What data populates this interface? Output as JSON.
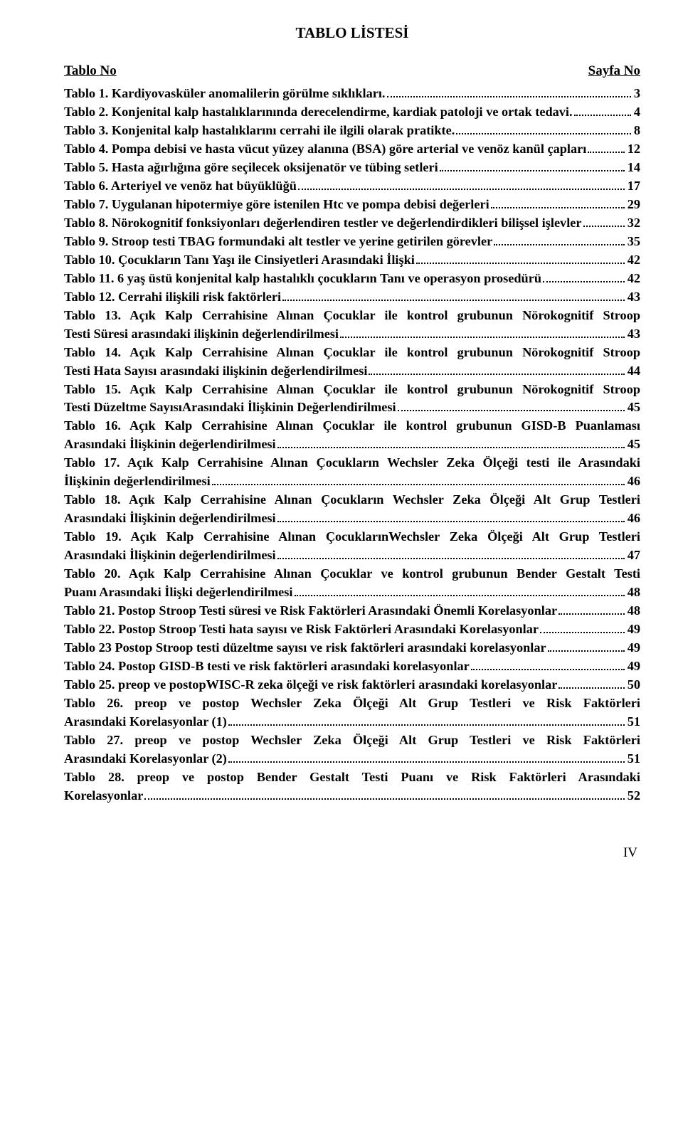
{
  "title": "TABLO LİSTESİ",
  "header_left": "Tablo No",
  "header_right": "Sayfa No",
  "footer": "IV",
  "entries": [
    {
      "label": "Tablo 1. Kardiyovasküler anomalilerin görülme sıklıkları.",
      "page": "3"
    },
    {
      "label": "Tablo 2. Konjenital kalp hastalıklarınında derecelendirme, kardiak patoloji ve ortak tedavi.",
      "page": "4"
    },
    {
      "label": "Tablo 3. Konjenital kalp hastalıklarını cerrahi ile ilgili olarak pratikte.",
      "page": "8"
    },
    {
      "label": "Tablo 4. Pompa debisi ve hasta vücut yüzey alanına (BSA) göre arterial ve venöz kanül çapları",
      "page": "12"
    },
    {
      "label": "Tablo 5. Hasta ağırlığına göre seçilecek oksijenatör ve tübing setleri",
      "page": "14"
    },
    {
      "label": "Tablo 6. Arteriyel ve venöz hat büyüklüğü",
      "page": "17"
    },
    {
      "label": "Tablo 7. Uygulanan hipotermiye göre istenilen Htc ve pompa debisi değerleri",
      "page": "29"
    },
    {
      "label": "Tablo 8. Nörokognitif fonksiyonları değerlendiren testler ve değerlendirdikleri bilişsel işlevler",
      "page": "32"
    },
    {
      "label": "Tablo 9. Stroop testi TBAG formundaki alt testler ve yerine getirilen görevler",
      "page": "35"
    },
    {
      "label": "Tablo 10. Çocukların Tanı Yaşı ile Cinsiyetleri Arasındaki İlişki",
      "page": "42"
    },
    {
      "label": "Tablo 11. 6 yaş üstü konjenital kalp hastalıklı çocukların Tanı ve operasyon prosedürü",
      "page": "42"
    },
    {
      "label": "Tablo 12. Cerrahi ilişkili risk faktörleri",
      "page": "43"
    },
    {
      "label1": "Tablo 13. Açık Kalp Cerrahisine Alınan Çocuklar ile kontrol grubunun Nörokognitif Stroop",
      "label2": "Testi Süresi arasındaki ilişkinin değerlendirilmesi",
      "page": "43"
    },
    {
      "label1": "Tablo 14. Açık Kalp Cerrahisine Alınan Çocuklar ile kontrol grubunun Nörokognitif Stroop",
      "label2": "Testi Hata Sayısı arasındaki ilişkinin değerlendirilmesi",
      "page": "44"
    },
    {
      "label1": "Tablo 15. Açık Kalp Cerrahisine Alınan Çocuklar ile kontrol grubunun Nörokognitif Stroop",
      "label2": "Testi Düzeltme SayısıArasındaki İlişkinin Değerlendirilmesi",
      "page": "45"
    },
    {
      "label1": "Tablo 16. Açık Kalp Cerrahisine Alınan Çocuklar ile kontrol grubunun GISD-B Puanlaması",
      "label2": "Arasındaki İlişkinin değerlendirilmesi",
      "page": "45"
    },
    {
      "label1": "Tablo 17. Açık Kalp Cerrahisine Alınan Çocukların Wechsler Zeka Ölçeği testi ile Arasındaki",
      "label2": "İlişkinin değerlendirilmesi",
      "page": "46"
    },
    {
      "label1": "Tablo 18. Açık Kalp Cerrahisine Alınan Çocukların Wechsler Zeka Ölçeği Alt Grup Testleri",
      "label2": "Arasındaki İlişkinin değerlendirilmesi",
      "page": "46"
    },
    {
      "label1": "Tablo 19. Açık Kalp Cerrahisine Alınan ÇocuklarınWechsler Zeka Ölçeği Alt Grup Testleri",
      "label2": "Arasındaki İlişkinin değerlendirilmesi",
      "page": "47"
    },
    {
      "label1": "Tablo 20. Açık Kalp Cerrahisine Alınan Çocuklar ve kontrol grubunun Bender Gestalt Testi",
      "label2": "Puanı Arasındaki İlişki değerlendirilmesi",
      "page": "48"
    },
    {
      "label": "Tablo 21. Postop Stroop Testi süresi ve Risk Faktörleri Arasındaki Önemli Korelasyonlar",
      "page": "48"
    },
    {
      "label": "Tablo 22. Postop Stroop Testi hata sayısı ve Risk Faktörleri Arasındaki Korelasyonlar",
      "page": "49"
    },
    {
      "label": "Tablo 23 Postop Stroop testi düzeltme sayısı ve risk faktörleri arasındaki korelasyonlar",
      "page": "49"
    },
    {
      "label": "Tablo 24. Postop GISD-B testi ve risk faktörleri arasındaki korelasyonlar",
      "page": "49"
    },
    {
      "label": "Tablo 25. preop ve postopWISC-R zeka ölçeği ve risk faktörleri arasındaki korelasyonlar",
      "page": "50"
    },
    {
      "label1": "Tablo 26. preop ve postop Wechsler Zeka Ölçeği Alt Grup Testleri ve Risk Faktörleri",
      "label2": "Arasındaki Korelasyonlar (1)",
      "page": "51"
    },
    {
      "label1": "Tablo 27. preop ve postop Wechsler Zeka Ölçeği Alt Grup Testleri ve Risk Faktörleri",
      "label2": "Arasındaki Korelasyonlar (2)",
      "page": "51"
    },
    {
      "label1": "Tablo 28. preop ve postop Bender Gestalt Testi Puanı ve Risk Faktörleri Arasındaki",
      "label2": "Korelasyonlar",
      "page": "52"
    }
  ]
}
